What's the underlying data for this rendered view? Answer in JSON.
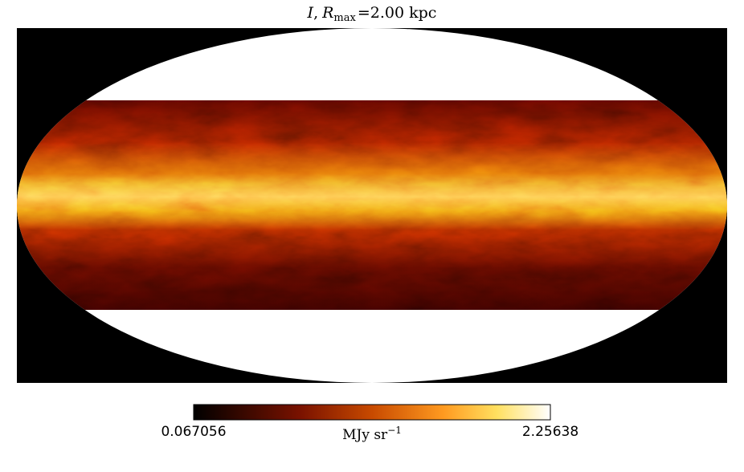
{
  "title": {
    "symbol": "I",
    "comma": ",",
    "var": "R",
    "sub": "max",
    "rest": "=2.00 kpc"
  },
  "colorbar": {
    "min": 0.067056,
    "max": 2.25638,
    "unit": "MJy sr",
    "unit_exp": "−1"
  }
}
